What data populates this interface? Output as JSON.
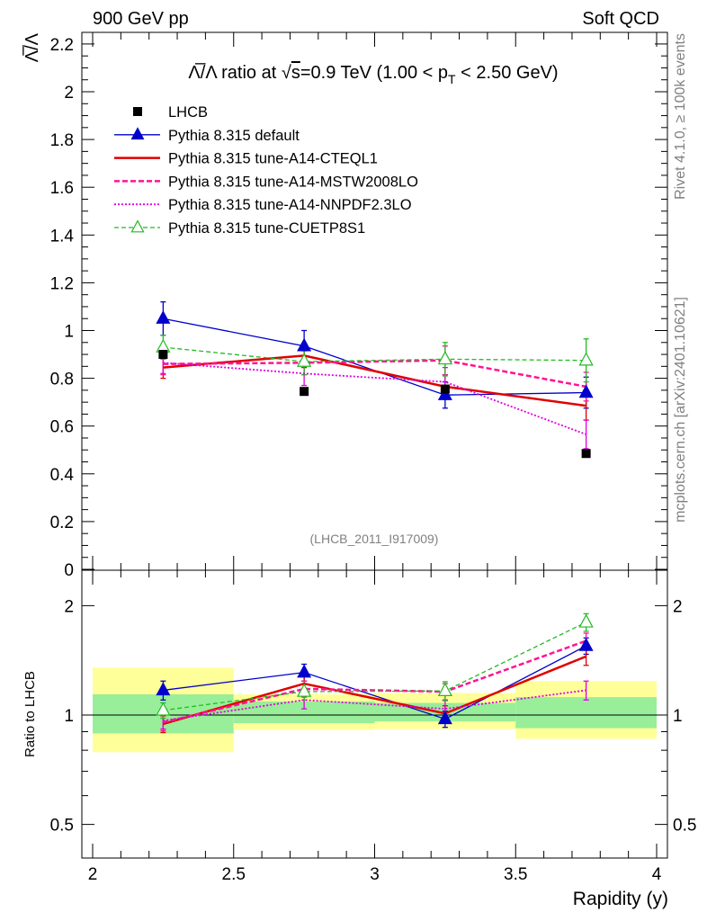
{
  "header": {
    "left": "900 GeV pp",
    "right": "Soft QCD"
  },
  "side": {
    "rivet": "Rivet 4.1.0, ≥ 100k events",
    "mcplots": "mcplots.cern.ch [arXiv:2401.10621]"
  },
  "watermark": "(LHCB_2011_I917009)",
  "chart_data": [
    {
      "type": "line",
      "title_parts": {
        "ratio": "Λ̅/Λ ratio at ",
        "root": "√",
        "s": "s",
        "energy": "=0.9 TeV (1.00 < p",
        "sub": "T",
        "tail": " < 2.50 GeV)"
      },
      "ylabel": "Λ̅/Λ",
      "xlabel": "Rapidity (y)",
      "xlim": [
        2,
        4
      ],
      "ylim": [
        0,
        2.25
      ],
      "x_ticks": [
        2,
        2.5,
        3,
        3.5,
        4
      ],
      "x_tick_labels": [
        "2",
        "2.5",
        "3",
        "3.5",
        "4"
      ],
      "y_ticks": [
        0,
        0.2,
        0.4,
        0.6,
        0.8,
        1,
        1.2,
        1.4,
        1.6,
        1.8,
        2,
        2.2
      ],
      "y_tick_labels": [
        "0",
        "0.2",
        "0.4",
        "0.6",
        "0.8",
        "1",
        "1.2",
        "1.4",
        "1.6",
        "1.8",
        "2",
        "2.2"
      ],
      "bins": [
        [
          2,
          2.5
        ],
        [
          2.5,
          3
        ],
        [
          3,
          3.5
        ],
        [
          3.5,
          4
        ]
      ],
      "x": [
        2.25,
        2.75,
        3.25,
        3.75
      ],
      "data": {
        "name": "LHCB",
        "values": [
          0.9,
          0.745,
          0.755,
          0.485
        ]
      },
      "series": [
        {
          "name": "Pythia 8.315 default",
          "color": "#0000cc",
          "dash": "",
          "width": 1.3,
          "marker": "triangle",
          "values": [
            1.05,
            0.935,
            0.73,
            0.74
          ],
          "errors": [
            0.07,
            0.065,
            0.055,
            0.065
          ]
        },
        {
          "name": "Pythia 8.315 tune-A14-CTEQL1",
          "color": "#e00000",
          "dash": "",
          "width": 2.5,
          "marker": "none",
          "values": [
            0.845,
            0.895,
            0.765,
            0.685
          ],
          "errors": [
            0.045,
            0.05,
            0.05,
            0.06
          ]
        },
        {
          "name": "Pythia 8.315 tune-A14-MSTW2008LO",
          "color": "#ff1493",
          "dash": "6,3",
          "width": 2.5,
          "marker": "none",
          "values": [
            0.86,
            0.865,
            0.875,
            0.765
          ],
          "errors": [
            0.045,
            0.05,
            0.06,
            0.06
          ]
        },
        {
          "name": "Pythia 8.315 tune-A14-NNPDF2.3LO",
          "color": "#e000e0",
          "dash": "2,2",
          "width": 1.8,
          "marker": "none",
          "values": [
            0.865,
            0.82,
            0.785,
            0.565
          ],
          "errors": [
            0.045,
            0.05,
            0.06,
            0.06
          ]
        },
        {
          "name": "Pythia 8.315 tune-CUETP8S1",
          "color": "#22bb22",
          "dash": "5,3",
          "width": 1.3,
          "marker": "triangle-open",
          "values": [
            0.93,
            0.87,
            0.88,
            0.875
          ],
          "errors": [
            0.05,
            0.055,
            0.07,
            0.09
          ]
        }
      ]
    },
    {
      "type": "line",
      "ylabel": "Ratio to LHCB",
      "xlim": [
        2,
        4
      ],
      "ylim": [
        0.4,
        2.3
      ],
      "yscale": "log",
      "y_ticks": [
        0.5,
        1,
        2
      ],
      "y_tick_labels": [
        "0.5",
        "1",
        "2"
      ],
      "band_inner": [
        [
          0.89,
          1.14
        ],
        [
          0.95,
          1.09
        ],
        [
          0.96,
          1.08
        ],
        [
          0.92,
          1.12
        ]
      ],
      "band_outer": [
        [
          0.79,
          1.35
        ],
        [
          0.91,
          1.14
        ],
        [
          0.915,
          1.15
        ],
        [
          0.86,
          1.24
        ]
      ],
      "series": [
        {
          "name": "Pythia 8.315 default",
          "values": [
            1.17,
            1.31,
            0.975,
            1.55
          ],
          "errors": [
            0.07,
            0.07,
            0.05,
            0.08
          ]
        },
        {
          "name": "Pythia 8.315 tune-A14-CTEQL1",
          "values": [
            0.945,
            1.22,
            1.01,
            1.45
          ],
          "errors": [
            0.05,
            0.06,
            0.05,
            0.08
          ]
        },
        {
          "name": "Pythia 8.315 tune-A14-MSTW2008LO",
          "values": [
            0.955,
            1.18,
            1.16,
            1.6
          ],
          "errors": [
            0.05,
            0.06,
            0.06,
            0.08
          ]
        },
        {
          "name": "Pythia 8.315 tune-A14-NNPDF2.3LO",
          "values": [
            0.965,
            1.1,
            1.04,
            1.17
          ],
          "errors": [
            0.05,
            0.06,
            0.06,
            0.07
          ]
        },
        {
          "name": "Pythia 8.315 tune-CUETP8S1",
          "values": [
            1.03,
            1.16,
            1.165,
            1.8
          ],
          "errors": [
            0.05,
            0.06,
            0.07,
            0.1
          ]
        }
      ]
    }
  ]
}
